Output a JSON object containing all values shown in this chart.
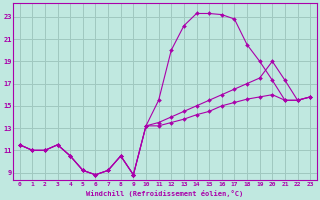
{
  "background_color": "#c0e8e0",
  "grid_color": "#a0c8c0",
  "line_color": "#aa00aa",
  "xlabel": "Windchill (Refroidissement éolien,°C)",
  "xlim": [
    -0.5,
    23.5
  ],
  "ylim": [
    8.3,
    24.2
  ],
  "yticks": [
    9,
    11,
    13,
    15,
    17,
    19,
    21,
    23
  ],
  "xticks": [
    0,
    1,
    2,
    3,
    4,
    5,
    6,
    7,
    8,
    9,
    10,
    11,
    12,
    13,
    14,
    15,
    16,
    17,
    18,
    19,
    20,
    21,
    22,
    23
  ],
  "shared_x": [
    0,
    1,
    2,
    3,
    4,
    5,
    6,
    7,
    8,
    9
  ],
  "shared_y": [
    11.5,
    11.0,
    11.0,
    11.5,
    10.5,
    9.2,
    8.8,
    9.2,
    10.5,
    8.8
  ],
  "series1_x": [
    9,
    10,
    11,
    12,
    13,
    14,
    15,
    16,
    17,
    18,
    19,
    20,
    21,
    22,
    23
  ],
  "series1_y": [
    8.8,
    13.2,
    15.5,
    20.0,
    22.2,
    23.3,
    23.3,
    23.2,
    22.8,
    20.5,
    19.0,
    17.3,
    15.5,
    15.5,
    15.8
  ],
  "series2_x": [
    9,
    10,
    11,
    12,
    13,
    14,
    15,
    16,
    17,
    18,
    19,
    20,
    21,
    22,
    23
  ],
  "series2_y": [
    8.8,
    13.2,
    13.5,
    14.0,
    14.5,
    15.0,
    15.5,
    16.0,
    16.5,
    17.0,
    17.5,
    19.0,
    17.3,
    15.5,
    15.8
  ],
  "series3_x": [
    9,
    10,
    11,
    12,
    13,
    14,
    15,
    16,
    17,
    18,
    19,
    20,
    21,
    22,
    23
  ],
  "series3_y": [
    8.8,
    13.2,
    13.2,
    13.5,
    13.8,
    14.2,
    14.5,
    15.0,
    15.3,
    15.6,
    15.8,
    16.0,
    15.5,
    15.5,
    15.8
  ]
}
